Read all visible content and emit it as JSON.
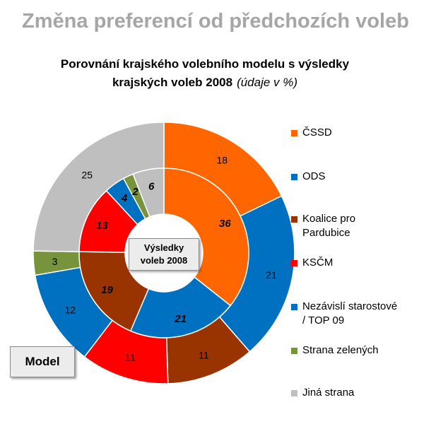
{
  "page": {
    "title": "Změna preferencí od předchozích voleb"
  },
  "chart_data": {
    "type": "donut",
    "title_line1": "Porovnání krajského volebního modelu s výsledky",
    "title_line2": "krajských voleb 2008",
    "title_note": "(údaje v %)",
    "inner_label_line1": "Výsledky",
    "inner_label_line2": "voleb 2008",
    "outer_label": "Model",
    "categories": [
      "ČSSD",
      "ODS",
      "Koalice pro Pardubice",
      "KSČM",
      "Nezávislí starostové / TOP 09",
      "Strana zelených",
      "Jiná strana"
    ],
    "legend": [
      {
        "line1": "ČSSD",
        "line2": "",
        "color": "#ff6600"
      },
      {
        "line1": "ODS",
        "line2": "",
        "color": "#0070c0"
      },
      {
        "line1": "Koalice pro",
        "line2": "Pardubice",
        "color": "#993300"
      },
      {
        "line1": "KSČM",
        "line2": "",
        "color": "#ff0000"
      },
      {
        "line1": "Nezávislí starostové",
        "line2": "/ TOP 09",
        "color": "#0070c0"
      },
      {
        "line1": "Strana zelených",
        "line2": "",
        "color": "#77933c"
      },
      {
        "line1": "Jiná strana",
        "line2": "",
        "color": "#bfbfbf"
      }
    ],
    "series": [
      {
        "name": "Výsledky voleb 2008",
        "ring": "inner",
        "values": [
          36,
          21,
          19,
          13,
          4,
          2,
          6
        ]
      },
      {
        "name": "Model",
        "ring": "outer",
        "values": [
          18,
          21,
          11,
          11,
          12,
          3,
          25
        ]
      }
    ],
    "start_angle_deg": 270
  }
}
